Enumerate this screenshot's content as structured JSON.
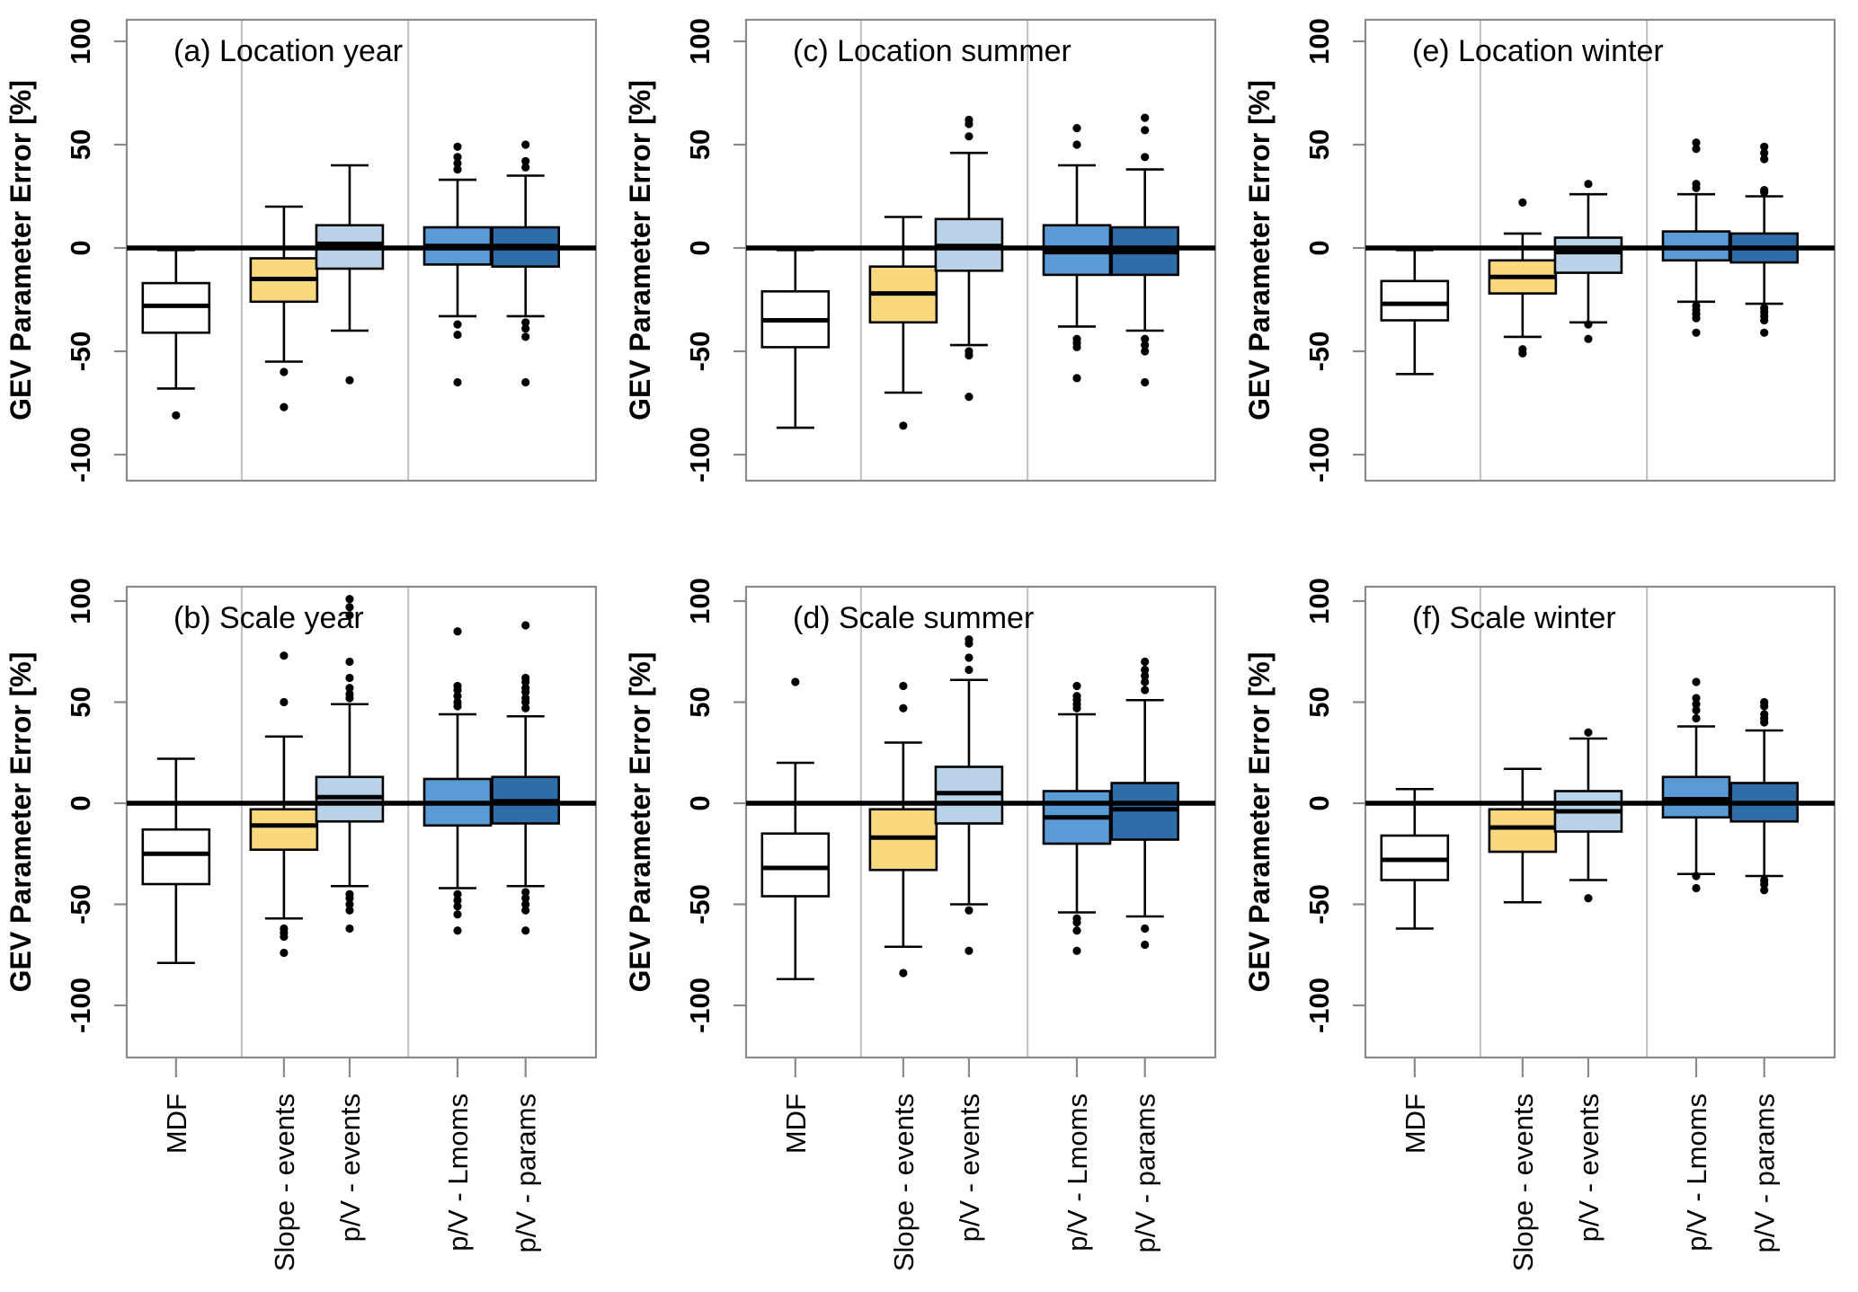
{
  "figure_title": "GEV parameter error boxplot grid",
  "chart_data": {
    "type": "boxplot-grid",
    "ylabel": "GEV Parameter Error [%]",
    "yticks": [
      100,
      50,
      0,
      -50,
      -100
    ],
    "ylim": [
      -112,
      112
    ],
    "grid": "vertical-group-separators",
    "zero_reference_line": true,
    "categories": [
      "MDF",
      "Slope - events",
      "p/V - events",
      "p/V - Lmoms",
      "p/V - params"
    ],
    "colors": [
      "#FFFFFF",
      "#FAD97E",
      "#B9D2E8",
      "#5B9BD5",
      "#2E6DA8"
    ],
    "frame_color": "#8a8a8a",
    "separator_color": "#c4c4c4",
    "panels": [
      {
        "id": "a",
        "title": "(a) Location year",
        "row": 1,
        "boxes": [
          {
            "category": "MDF",
            "median": -28,
            "q1": -41,
            "q3": -17,
            "whisker_low": -68,
            "whisker_high": -1,
            "outliers": [
              -81
            ]
          },
          {
            "category": "Slope - events",
            "median": -15,
            "q1": -26,
            "q3": -5,
            "whisker_low": -55,
            "whisker_high": 20,
            "outliers": [
              -60,
              -77
            ]
          },
          {
            "category": "p/V - events",
            "median": 2,
            "q1": -10,
            "q3": 11,
            "whisker_low": -40,
            "whisker_high": 40,
            "outliers": [
              -64
            ]
          },
          {
            "category": "p/V - Lmoms",
            "median": 1,
            "q1": -8,
            "q3": 10,
            "whisker_low": -33,
            "whisker_high": 33,
            "outliers": [
              49,
              44,
              41,
              38,
              -37,
              -42,
              -65
            ]
          },
          {
            "category": "p/V - params",
            "median": 1,
            "q1": -9,
            "q3": 10,
            "whisker_low": -33,
            "whisker_high": 35,
            "outliers": [
              50,
              42,
              39,
              -36,
              -39,
              -43,
              -65
            ]
          }
        ]
      },
      {
        "id": "c",
        "title": "(c) Location summer",
        "row": 1,
        "boxes": [
          {
            "category": "MDF",
            "median": -35,
            "q1": -48,
            "q3": -21,
            "whisker_low": -87,
            "whisker_high": -1,
            "outliers": []
          },
          {
            "category": "Slope - events",
            "median": -22,
            "q1": -36,
            "q3": -9,
            "whisker_low": -70,
            "whisker_high": 15,
            "outliers": [
              -86
            ]
          },
          {
            "category": "p/V - events",
            "median": 1,
            "q1": -11,
            "q3": 14,
            "whisker_low": -47,
            "whisker_high": 46,
            "outliers": [
              62,
              60,
              54,
              -50,
              -52,
              -72
            ]
          },
          {
            "category": "p/V - Lmoms",
            "median": -2,
            "q1": -13,
            "q3": 11,
            "whisker_low": -38,
            "whisker_high": 40,
            "outliers": [
              58,
              50,
              -44,
              -46,
              -48,
              -63
            ]
          },
          {
            "category": "p/V - params",
            "median": -2,
            "q1": -13,
            "q3": 10,
            "whisker_low": -40,
            "whisker_high": 38,
            "outliers": [
              63,
              57,
              44,
              -44,
              -47,
              -50,
              -65
            ]
          }
        ]
      },
      {
        "id": "e",
        "title": "(e) Location winter",
        "row": 1,
        "boxes": [
          {
            "category": "MDF",
            "median": -27,
            "q1": -35,
            "q3": -16,
            "whisker_low": -61,
            "whisker_high": -1,
            "outliers": []
          },
          {
            "category": "Slope - events",
            "median": -14,
            "q1": -22,
            "q3": -6,
            "whisker_low": -43,
            "whisker_high": 7,
            "outliers": [
              22,
              -49,
              -51
            ]
          },
          {
            "category": "p/V - events",
            "median": -2,
            "q1": -12,
            "q3": 5,
            "whisker_low": -36,
            "whisker_high": 26,
            "outliers": [
              31,
              -37,
              -44
            ]
          },
          {
            "category": "p/V - Lmoms",
            "median": 0,
            "q1": -6,
            "q3": 8,
            "whisker_low": -26,
            "whisker_high": 26,
            "outliers": [
              51,
              48,
              31,
              29,
              -28,
              -30,
              -32,
              -34,
              -41
            ]
          },
          {
            "category": "p/V - params",
            "median": 0,
            "q1": -7,
            "q3": 7,
            "whisker_low": -27,
            "whisker_high": 25,
            "outliers": [
              49,
              46,
              43,
              28,
              27,
              -29,
              -31,
              -33,
              -35,
              -41
            ]
          }
        ]
      },
      {
        "id": "b",
        "title": "(b) Scale year",
        "row": 2,
        "boxes": [
          {
            "category": "MDF",
            "median": -25,
            "q1": -40,
            "q3": -13,
            "whisker_low": -79,
            "whisker_high": 22,
            "outliers": []
          },
          {
            "category": "Slope - events",
            "median": -11,
            "q1": -23,
            "q3": -3,
            "whisker_low": -57,
            "whisker_high": 33,
            "outliers": [
              73,
              50,
              -62,
              -64,
              -66,
              -74
            ]
          },
          {
            "category": "p/V - events",
            "median": 3,
            "q1": -9,
            "q3": 13,
            "whisker_low": -41,
            "whisker_high": 49,
            "outliers": [
              101,
              97,
              93,
              70,
              62,
              57,
              54,
              52,
              -45,
              -47,
              -50,
              -53,
              -62
            ]
          },
          {
            "category": "p/V - Lmoms",
            "median": 0,
            "q1": -11,
            "q3": 12,
            "whisker_low": -42,
            "whisker_high": 44,
            "outliers": [
              85,
              58,
              56,
              53,
              50,
              48,
              -45,
              -48,
              -51,
              -55,
              -63
            ]
          },
          {
            "category": "p/V - params",
            "median": 1,
            "q1": -10,
            "q3": 13,
            "whisker_low": -41,
            "whisker_high": 43,
            "outliers": [
              88,
              62,
              60,
              57,
              55,
              52,
              50,
              47,
              -44,
              -47,
              -50,
              -53,
              -63
            ]
          }
        ]
      },
      {
        "id": "d",
        "title": "(d) Scale summer",
        "row": 2,
        "boxes": [
          {
            "category": "MDF",
            "median": -32,
            "q1": -46,
            "q3": -15,
            "whisker_low": -87,
            "whisker_high": 20,
            "outliers": [
              60
            ]
          },
          {
            "category": "Slope - events",
            "median": -17,
            "q1": -33,
            "q3": -3,
            "whisker_low": -71,
            "whisker_high": 30,
            "outliers": [
              58,
              47,
              -84
            ]
          },
          {
            "category": "p/V - events",
            "median": 5,
            "q1": -10,
            "q3": 18,
            "whisker_low": -50,
            "whisker_high": 61,
            "outliers": [
              81,
              79,
              72,
              66,
              -53,
              -73
            ]
          },
          {
            "category": "p/V - Lmoms",
            "median": -7,
            "q1": -20,
            "q3": 6,
            "whisker_low": -54,
            "whisker_high": 44,
            "outliers": [
              58,
              53,
              51,
              49,
              47,
              -57,
              -59,
              -63,
              -73
            ]
          },
          {
            "category": "p/V - params",
            "median": -3,
            "q1": -18,
            "q3": 10,
            "whisker_low": -56,
            "whisker_high": 51,
            "outliers": [
              70,
              66,
              63,
              60,
              56,
              -62,
              -70
            ]
          }
        ]
      },
      {
        "id": "f",
        "title": "(f) Scale winter",
        "row": 2,
        "boxes": [
          {
            "category": "MDF",
            "median": -28,
            "q1": -38,
            "q3": -16,
            "whisker_low": -62,
            "whisker_high": 7,
            "outliers": []
          },
          {
            "category": "Slope - events",
            "median": -12,
            "q1": -24,
            "q3": -3,
            "whisker_low": -49,
            "whisker_high": 17,
            "outliers": []
          },
          {
            "category": "p/V - events",
            "median": -4,
            "q1": -14,
            "q3": 6,
            "whisker_low": -38,
            "whisker_high": 32,
            "outliers": [
              35,
              -47
            ]
          },
          {
            "category": "p/V - Lmoms",
            "median": 2,
            "q1": -7,
            "q3": 13,
            "whisker_low": -35,
            "whisker_high": 38,
            "outliers": [
              60,
              52,
              49,
              46,
              42,
              -36,
              -42
            ]
          },
          {
            "category": "p/V - params",
            "median": 0,
            "q1": -9,
            "q3": 10,
            "whisker_low": -36,
            "whisker_high": 36,
            "outliers": [
              50,
              48,
              44,
              42,
              40,
              -38,
              -40,
              -43
            ]
          }
        ]
      }
    ]
  }
}
